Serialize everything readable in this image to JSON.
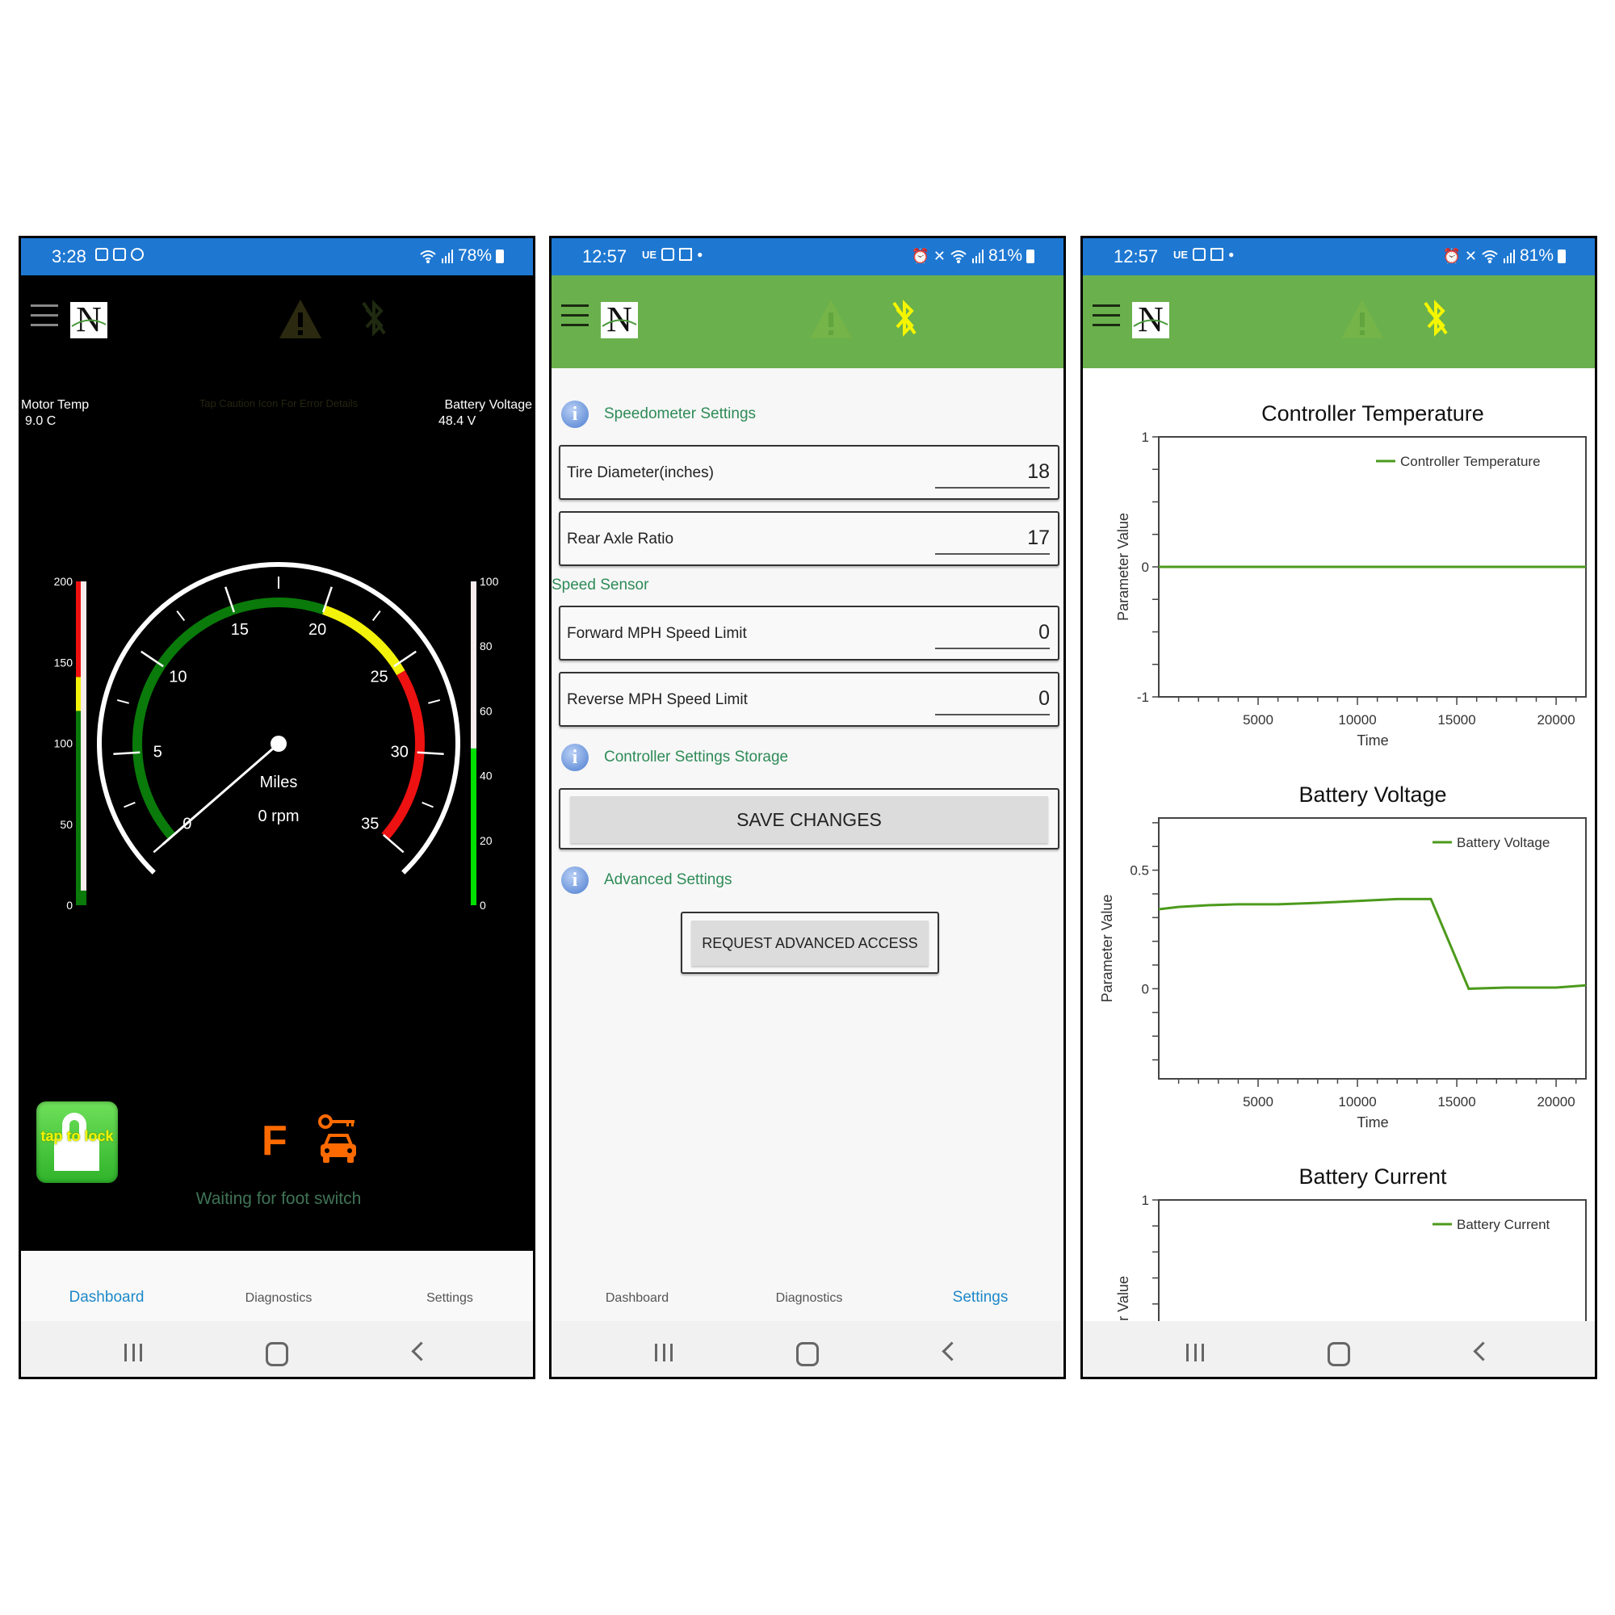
{
  "colors": {
    "status_bar": "#1e78d2",
    "header_green": "#6ab04c",
    "accent_blue": "#1e88c8",
    "section_green": "#2e8b57",
    "series_green": "#4c9a1c",
    "gear_orange": "#ff6a00"
  },
  "dashboard": {
    "status": {
      "time": "3:28",
      "battery": "78%",
      "icons": [
        "notes-icon",
        "mail-icon",
        "messenger-icon",
        "wifi-icon",
        "signal-icon",
        "battery-icon"
      ]
    },
    "header": {
      "icons": [
        "menu-icon",
        "logo",
        "warning-icon",
        "bluetooth-disabled-icon"
      ]
    },
    "motor_temp": {
      "label": "Motor Temp",
      "value": "9.0 C"
    },
    "hint": "Tap Caution Icon For Error Details",
    "battery_voltage": {
      "label": "Battery Voltage",
      "value": "48.4 V"
    },
    "speedometer": {
      "min": 0,
      "max": 35,
      "value": 0,
      "labels": [
        "0",
        "5",
        "10",
        "15",
        "20",
        "25",
        "30",
        "35"
      ],
      "zones": [
        {
          "from": 0,
          "to": 20,
          "color": "#0a7a0a"
        },
        {
          "from": 20,
          "to": 25.5,
          "color": "#f2f20a"
        },
        {
          "from": 25.5,
          "to": 35,
          "color": "#ee1111"
        }
      ],
      "unit": "Miles",
      "rpm": "0 rpm"
    },
    "temp_bar": {
      "min": 0,
      "max": 200,
      "value": 9,
      "labels": [
        "200",
        "150",
        "100",
        "50",
        "0"
      ],
      "zones": [
        {
          "from": 0,
          "to": 120,
          "color": "#0a7a0a"
        },
        {
          "from": 120,
          "to": 141,
          "color": "#f2f20a"
        },
        {
          "from": 141,
          "to": 200,
          "color": "#ee1111"
        }
      ]
    },
    "voltage_bar": {
      "min": 0,
      "max": 100,
      "value": 48.4,
      "labels": [
        "100",
        "80",
        "60",
        "40",
        "20",
        "0"
      ]
    },
    "lock_button": "tap to lock",
    "gear": "F",
    "status_message": "Waiting for foot switch",
    "tabs": [
      {
        "label": "Dashboard",
        "active": true
      },
      {
        "label": "Diagnostics"
      },
      {
        "label": "Settings"
      }
    ]
  },
  "settings": {
    "status": {
      "time": "12:57",
      "carrier": "UE",
      "battery": "81%"
    },
    "speedometer_title": "Speedometer Settings",
    "fields": [
      {
        "label": "Tire Diameter(inches)",
        "value": "18"
      },
      {
        "label": "Rear Axle Ratio",
        "value": "17"
      },
      {
        "label": "Forward MPH Speed Limit",
        "value": "0"
      },
      {
        "label": "Reverse MPH Speed Limit",
        "value": "0"
      }
    ],
    "speed_sensor_title": "Speed Sensor",
    "storage_title": "Controller Settings Storage",
    "save_button": "SAVE CHANGES",
    "advanced_title": "Advanced Settings",
    "advanced_button": "REQUEST ADVANCED ACCESS",
    "tabs": [
      {
        "label": "Dashboard"
      },
      {
        "label": "Diagnostics"
      },
      {
        "label": "Settings",
        "active": true
      }
    ]
  },
  "diagnostics": {
    "status": {
      "time": "12:57",
      "carrier": "UE",
      "battery": "81%"
    }
  },
  "chart_data": [
    {
      "type": "line",
      "title": "Controller Temperature",
      "xlabel": "Time",
      "ylabel": "Parameter Value",
      "xlim": [
        0,
        21500
      ],
      "ylim": [
        -1,
        1
      ],
      "xticks": [
        5000,
        10000,
        15000,
        20000
      ],
      "xminor": 1000,
      "yticks": [
        -1,
        0,
        1
      ],
      "yminor": 0.25,
      "legend": "top-right",
      "grid": false,
      "series": [
        {
          "name": "Controller Temperature",
          "x": [
            0,
            21500
          ],
          "y": [
            0,
            0
          ]
        }
      ]
    },
    {
      "type": "line",
      "title": "Battery Voltage",
      "xlabel": "Time",
      "ylabel": "Parameter Value",
      "xlim": [
        0,
        21500
      ],
      "ylim": [
        -0.38,
        0.72
      ],
      "xticks": [
        5000,
        10000,
        15000,
        20000
      ],
      "xminor": 1000,
      "yticks": [
        0,
        0.5
      ],
      "yminor": 0.1,
      "legend": "top-right",
      "grid": false,
      "series": [
        {
          "name": "Battery Voltage",
          "x": [
            0,
            1000,
            2500,
            4000,
            6000,
            8000,
            10000,
            12000,
            13700,
            15600,
            17500,
            20000,
            21500
          ],
          "y": [
            0.335,
            0.345,
            0.352,
            0.356,
            0.356,
            0.362,
            0.37,
            0.378,
            0.378,
            0.0,
            0.005,
            0.005,
            0.014
          ]
        }
      ]
    },
    {
      "type": "line",
      "title": "Battery Current",
      "xlabel": "",
      "ylabel": "Parameter Value",
      "xlim": [
        0,
        21500
      ],
      "ylim": [
        -1,
        1
      ],
      "xticks": [],
      "xminor": 1000,
      "yticks": [
        1
      ],
      "yminor": 0.2,
      "legend": "top-right",
      "grid": false,
      "series": [
        {
          "name": "Battery Current",
          "x": [],
          "y": []
        }
      ]
    }
  ]
}
